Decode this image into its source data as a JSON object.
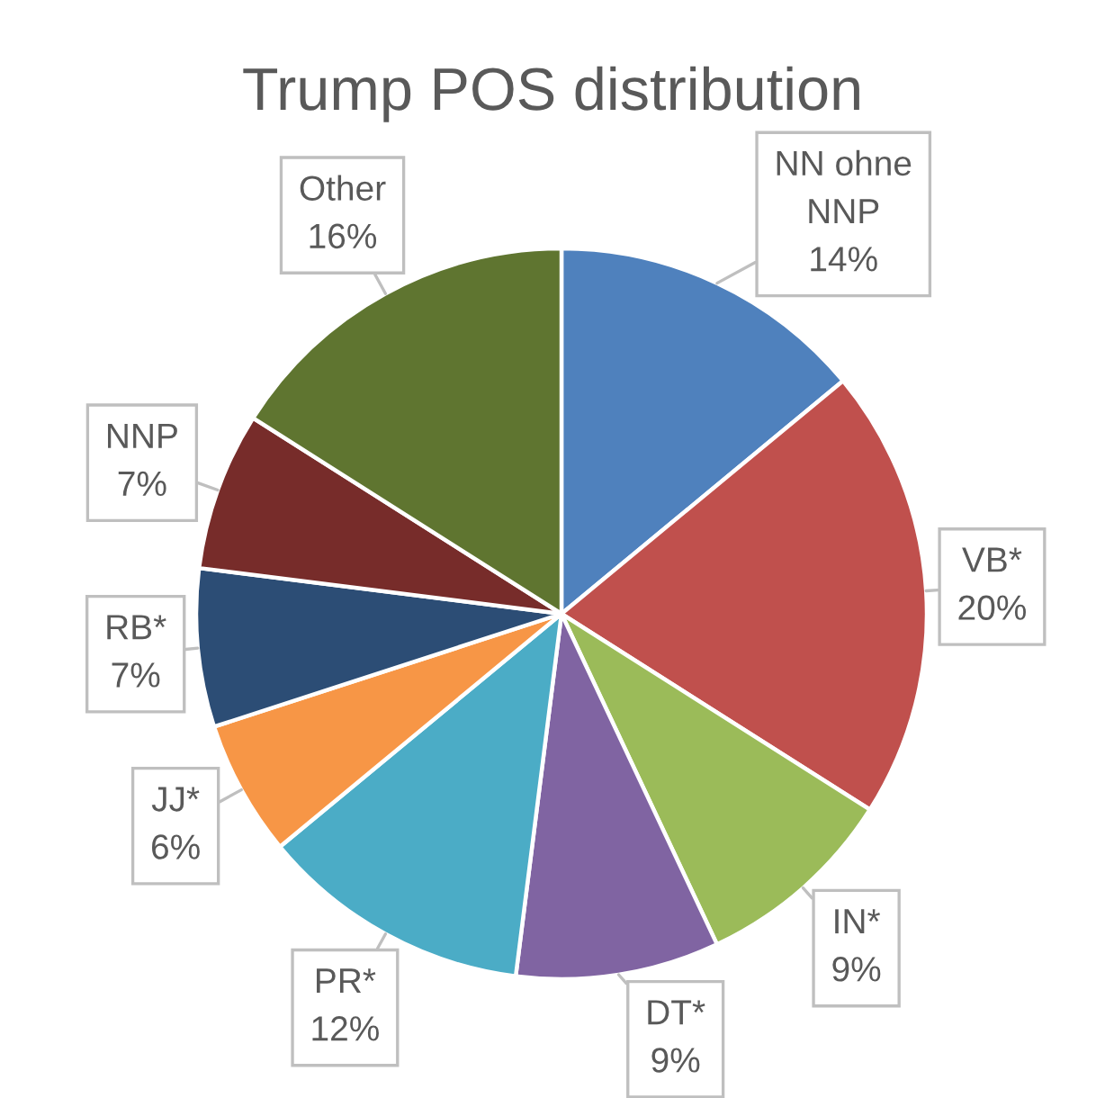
{
  "chart_data": {
    "type": "pie",
    "title": "Trump POS distribution",
    "categories": [
      "NN ohne NNP",
      "VB*",
      "IN*",
      "DT*",
      "PR*",
      "JJ*",
      "RB*",
      "NNP",
      "Other"
    ],
    "values": [
      14,
      20,
      9,
      9,
      12,
      6,
      7,
      7,
      16
    ],
    "colors": [
      "#4f81bd",
      "#c0504d",
      "#9bbb59",
      "#8064a2",
      "#4bacc6",
      "#f79646",
      "#2c4d75",
      "#772c2a",
      "#5f7530"
    ],
    "value_labels": [
      "14%",
      "20%",
      "9%",
      "9%",
      "12%",
      "6%",
      "7%",
      "7%",
      "16%"
    ]
  }
}
